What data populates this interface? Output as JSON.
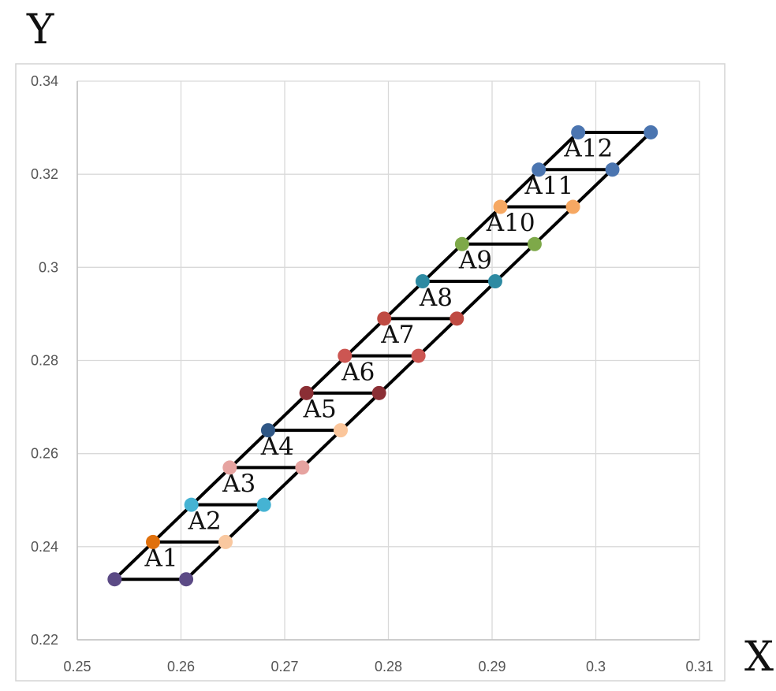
{
  "chart_data": {
    "type": "scatter",
    "title": "",
    "xlabel": "X",
    "ylabel": "Y",
    "xlim": [
      0.25,
      0.31
    ],
    "ylim": [
      0.22,
      0.34
    ],
    "x_ticks": [
      "0.25",
      "0.26",
      "0.27",
      "0.28",
      "0.29",
      "0.3",
      "0.31"
    ],
    "y_ticks": [
      "0.22",
      "0.24",
      "0.26",
      "0.28",
      "0.3",
      "0.32",
      "0.34"
    ],
    "grid": true,
    "outline": {
      "left_edge": [
        [
          0.2536,
          0.233
        ],
        [
          0.2983,
          0.329
        ]
      ],
      "right_edge": [
        [
          0.2605,
          0.233
        ],
        [
          0.3053,
          0.329
        ]
      ]
    },
    "series": [
      {
        "color": "#5b4a85",
        "points": [
          [
            0.2536,
            0.233
          ],
          [
            0.2605,
            0.233
          ]
        ]
      },
      {
        "color": "#e0700c",
        "points": [
          [
            0.2573,
            0.241
          ]
        ]
      },
      {
        "color": "#f9c8a0",
        "points": [
          [
            0.2643,
            0.241
          ]
        ]
      },
      {
        "color": "#45b3d3",
        "points": [
          [
            0.261,
            0.249
          ],
          [
            0.268,
            0.249
          ]
        ]
      },
      {
        "color": "#e6a3a0",
        "points": [
          [
            0.2647,
            0.257
          ],
          [
            0.2717,
            0.257
          ]
        ]
      },
      {
        "color": "#2f5785",
        "points": [
          [
            0.2684,
            0.265
          ]
        ]
      },
      {
        "color": "#fbc69b",
        "points": [
          [
            0.2754,
            0.265
          ]
        ]
      },
      {
        "color": "#8b2f35",
        "points": [
          [
            0.2721,
            0.273
          ],
          [
            0.2791,
            0.273
          ]
        ]
      },
      {
        "color": "#cc5652",
        "points": [
          [
            0.2758,
            0.281
          ],
          [
            0.2829,
            0.281
          ]
        ]
      },
      {
        "color": "#bf4a42",
        "points": [
          [
            0.2796,
            0.289
          ],
          [
            0.2866,
            0.289
          ]
        ]
      },
      {
        "color": "#2d8aa2",
        "points": [
          [
            0.2833,
            0.297
          ],
          [
            0.2903,
            0.297
          ]
        ]
      },
      {
        "color": "#7ea949",
        "points": [
          [
            0.2871,
            0.305
          ],
          [
            0.2941,
            0.305
          ]
        ]
      },
      {
        "color": "#f6a862",
        "points": [
          [
            0.2908,
            0.313
          ],
          [
            0.2978,
            0.313
          ]
        ]
      },
      {
        "color": "#4b75b0",
        "points": [
          [
            0.2945,
            0.321
          ],
          [
            0.3016,
            0.321
          ],
          [
            0.2983,
            0.329
          ],
          [
            0.3053,
            0.329
          ]
        ]
      }
    ],
    "rungs_y": [
      0.241,
      0.249,
      0.257,
      0.265,
      0.273,
      0.281,
      0.289,
      0.297,
      0.305,
      0.313,
      0.321,
      0.329
    ],
    "annotations": [
      {
        "text": "A1",
        "x": 0.2581,
        "y": 0.2358
      },
      {
        "text": "A2",
        "x": 0.2623,
        "y": 0.2438
      },
      {
        "text": "A3",
        "x": 0.2656,
        "y": 0.2518
      },
      {
        "text": "A4",
        "x": 0.2693,
        "y": 0.2598
      },
      {
        "text": "A5",
        "x": 0.2734,
        "y": 0.2678
      },
      {
        "text": "A6",
        "x": 0.2771,
        "y": 0.2758
      },
      {
        "text": "A7",
        "x": 0.2809,
        "y": 0.2838
      },
      {
        "text": "A8",
        "x": 0.2846,
        "y": 0.2918
      },
      {
        "text": "A9",
        "x": 0.2884,
        "y": 0.2998
      },
      {
        "text": "A10",
        "x": 0.2918,
        "y": 0.3078
      },
      {
        "text": "A11",
        "x": 0.2955,
        "y": 0.3158
      },
      {
        "text": "A12",
        "x": 0.2993,
        "y": 0.3238
      }
    ]
  }
}
